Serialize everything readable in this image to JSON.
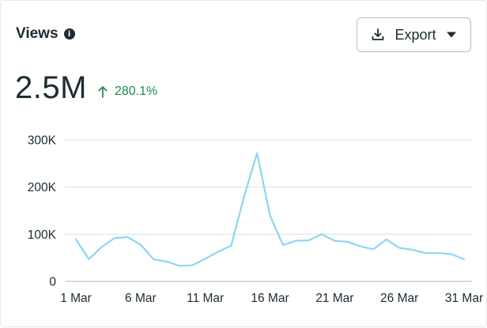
{
  "header": {
    "title": "Views",
    "info_icon": "info-icon"
  },
  "export_button": {
    "label": "Export",
    "icon_left": "download-icon",
    "icon_right": "caret-down-icon"
  },
  "metric": {
    "value": "2.5M",
    "change": "280.1%",
    "change_direction": "up",
    "change_color": "#1f8a4c"
  },
  "chart_data": {
    "type": "line",
    "title": "",
    "xlabel": "",
    "ylabel": "",
    "line_color": "#8dd5f5",
    "grid": true,
    "ylim": [
      0,
      300000
    ],
    "yticks": [
      0,
      100000,
      200000,
      300000
    ],
    "ytick_labels": [
      "0",
      "100K",
      "200K",
      "300K"
    ],
    "xtick_labels": [
      "1 Mar",
      "6 Mar",
      "11 Mar",
      "16 Mar",
      "21 Mar",
      "26 Mar",
      "31 Mar"
    ],
    "xtick_days": [
      1,
      6,
      11,
      16,
      21,
      26,
      31
    ],
    "x": [
      1,
      2,
      3,
      4,
      5,
      6,
      7,
      8,
      9,
      10,
      11,
      12,
      13,
      14,
      15,
      16,
      17,
      18,
      19,
      20,
      21,
      22,
      23,
      24,
      25,
      26,
      27,
      28,
      29,
      30,
      31
    ],
    "values": [
      89000,
      47000,
      73000,
      92000,
      94000,
      78000,
      47000,
      42000,
      33000,
      34000,
      48000,
      63000,
      76000,
      180000,
      272000,
      140000,
      77000,
      86000,
      87000,
      100000,
      86000,
      84000,
      74000,
      68000,
      89000,
      71000,
      67000,
      60000,
      60000,
      58000,
      47000
    ]
  }
}
